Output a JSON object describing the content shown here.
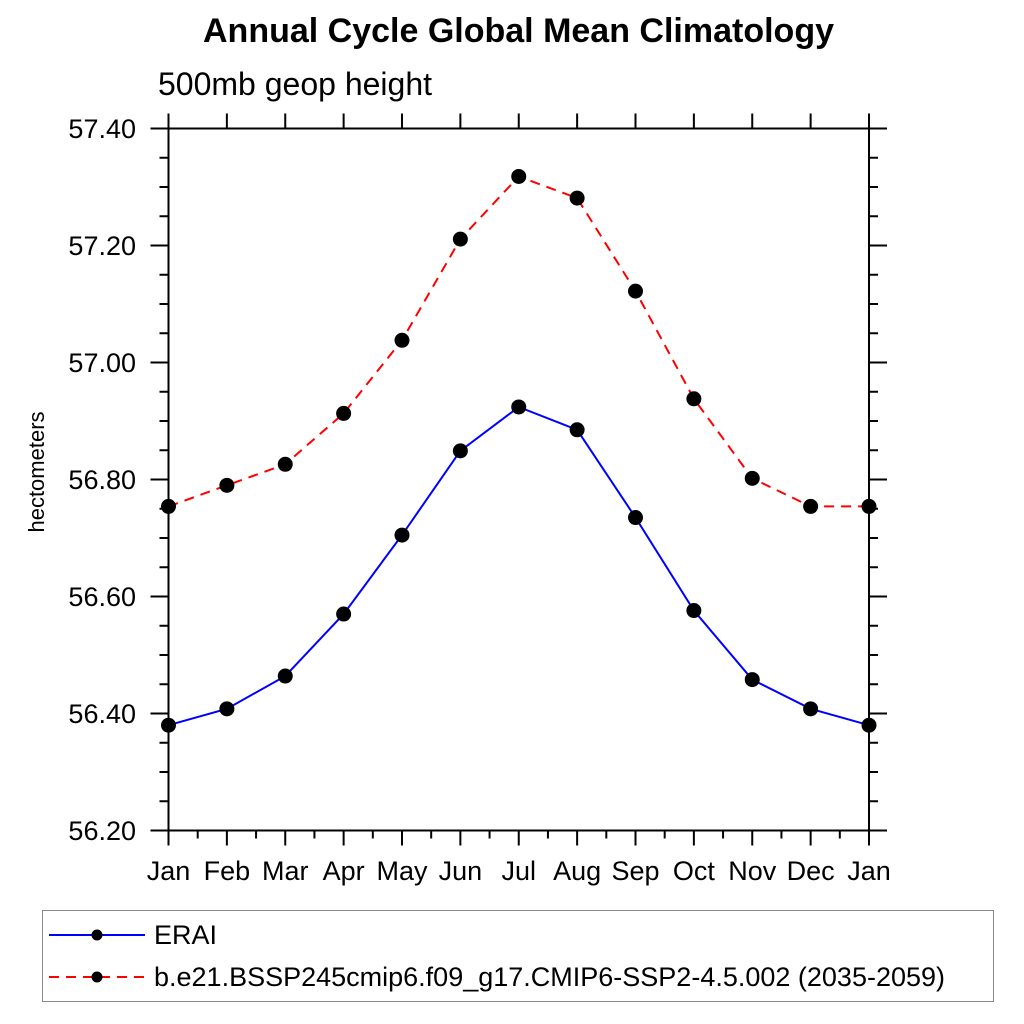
{
  "chart_data": {
    "type": "line",
    "title": "Annual Cycle Global Mean Climatology",
    "subtitle": "500mb geop height",
    "ylabel": "hectometers",
    "categories": [
      "Jan",
      "Feb",
      "Mar",
      "Apr",
      "May",
      "Jun",
      "Jul",
      "Aug",
      "Sep",
      "Oct",
      "Nov",
      "Dec",
      "Jan"
    ],
    "series": [
      {
        "name": "ERAI",
        "color": "#0000ff",
        "line_style": "solid",
        "marker": "filled-circle",
        "marker_color": "#000000",
        "values": [
          56.38,
          56.408,
          56.464,
          56.57,
          56.705,
          56.849,
          56.924,
          56.885,
          56.735,
          56.576,
          56.458,
          56.408,
          56.38
        ]
      },
      {
        "name": "b.e21.BSSP245cmip6.f09_g17.CMIP6-SSP2-4.5.002 (2035-2059)",
        "color": "#ff0000",
        "line_style": "dashed",
        "marker": "filled-circle",
        "marker_color": "#000000",
        "values": [
          56.754,
          56.79,
          56.826,
          56.913,
          57.038,
          57.211,
          57.318,
          57.281,
          57.122,
          56.938,
          56.802,
          56.754,
          56.754
        ]
      }
    ],
    "ylim": [
      56.2,
      57.4
    ],
    "ytick_major": 0.2,
    "ytick_minor": 0.05,
    "ytick_labels": [
      "57.40",
      "57.20",
      "57.00",
      "56.80",
      "56.60",
      "56.40",
      "56.20"
    ],
    "grid": false,
    "legend_position": "bottom",
    "axis_color": "#000000"
  }
}
